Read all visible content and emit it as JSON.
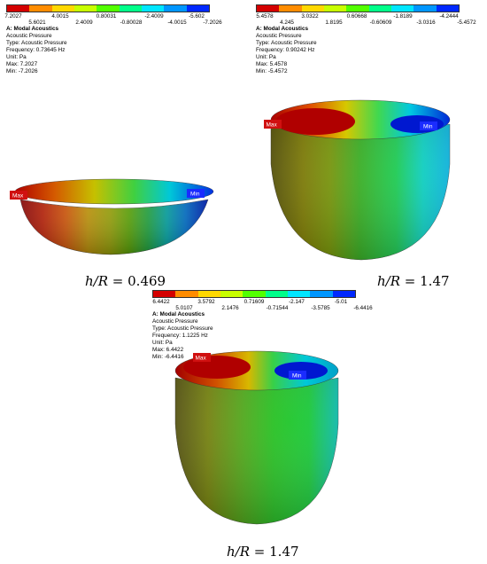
{
  "palette": [
    "#d40000",
    "#ff8c00",
    "#ffd800",
    "#c8ff00",
    "#52ff00",
    "#00ff8a",
    "#00e6ff",
    "#0096ff",
    "#0028ff"
  ],
  "panels": [
    {
      "legend": {
        "top": [
          "7.2027",
          "4.0015",
          "0.80031",
          "-2.4009",
          "-5.602"
        ],
        "bottom": [
          "5.6021",
          "2.4009",
          "-0.80028",
          "-4.0015",
          "-7.2026"
        ]
      },
      "info": {
        "header": "A: Modal Acoustics",
        "result": "Acoustic Pressure",
        "type": "Type: Acoustic Pressure",
        "frequency": "Frequency: 0.73645 Hz",
        "unit": "Unit: Pa",
        "max": "Max: 7.2027",
        "min": "Min: -7.2026"
      },
      "max_tag": "Max",
      "min_tag": "Min",
      "caption_lhs": "h/R",
      "caption_rhs": "= 0.469"
    },
    {
      "legend": {
        "top": [
          "5.4578",
          "3.0322",
          "0.60668",
          "-1.8189",
          "-4.2444"
        ],
        "bottom": [
          "4.245",
          "1.8195",
          "-0.60609",
          "-3.0316",
          "-5.4572"
        ]
      },
      "info": {
        "header": "A: Modal Acoustics",
        "result": "Acoustic Pressure",
        "type": "Type: Acoustic Pressure",
        "frequency": "Frequency: 0.90242 Hz",
        "unit": "Unit: Pa",
        "max": "Max: 5.4578",
        "min": "Min: -5.4572"
      },
      "max_tag": "Max",
      "min_tag": "Min",
      "caption_lhs": "h/R",
      "caption_rhs": "= 1.47"
    },
    {
      "legend": {
        "top": [
          "6.4422",
          "3.5792",
          "0.71609",
          "-2.147",
          "-5.01"
        ],
        "bottom": [
          "5.0107",
          "2.1476",
          "-0.71544",
          "-3.5785",
          "-6.4416"
        ]
      },
      "info": {
        "header": "A: Modal Acoustics",
        "result": "Acoustic Pressure",
        "type": "Type: Acoustic Pressure",
        "frequency": "Frequency: 1.1225 Hz",
        "unit": "Unit: Pa",
        "max": "Max: 6.4422",
        "min": "Min: -6.4416"
      },
      "max_tag": "Max",
      "min_tag": "Min",
      "caption_lhs": "h/R",
      "caption_rhs": "= 1.47"
    }
  ]
}
